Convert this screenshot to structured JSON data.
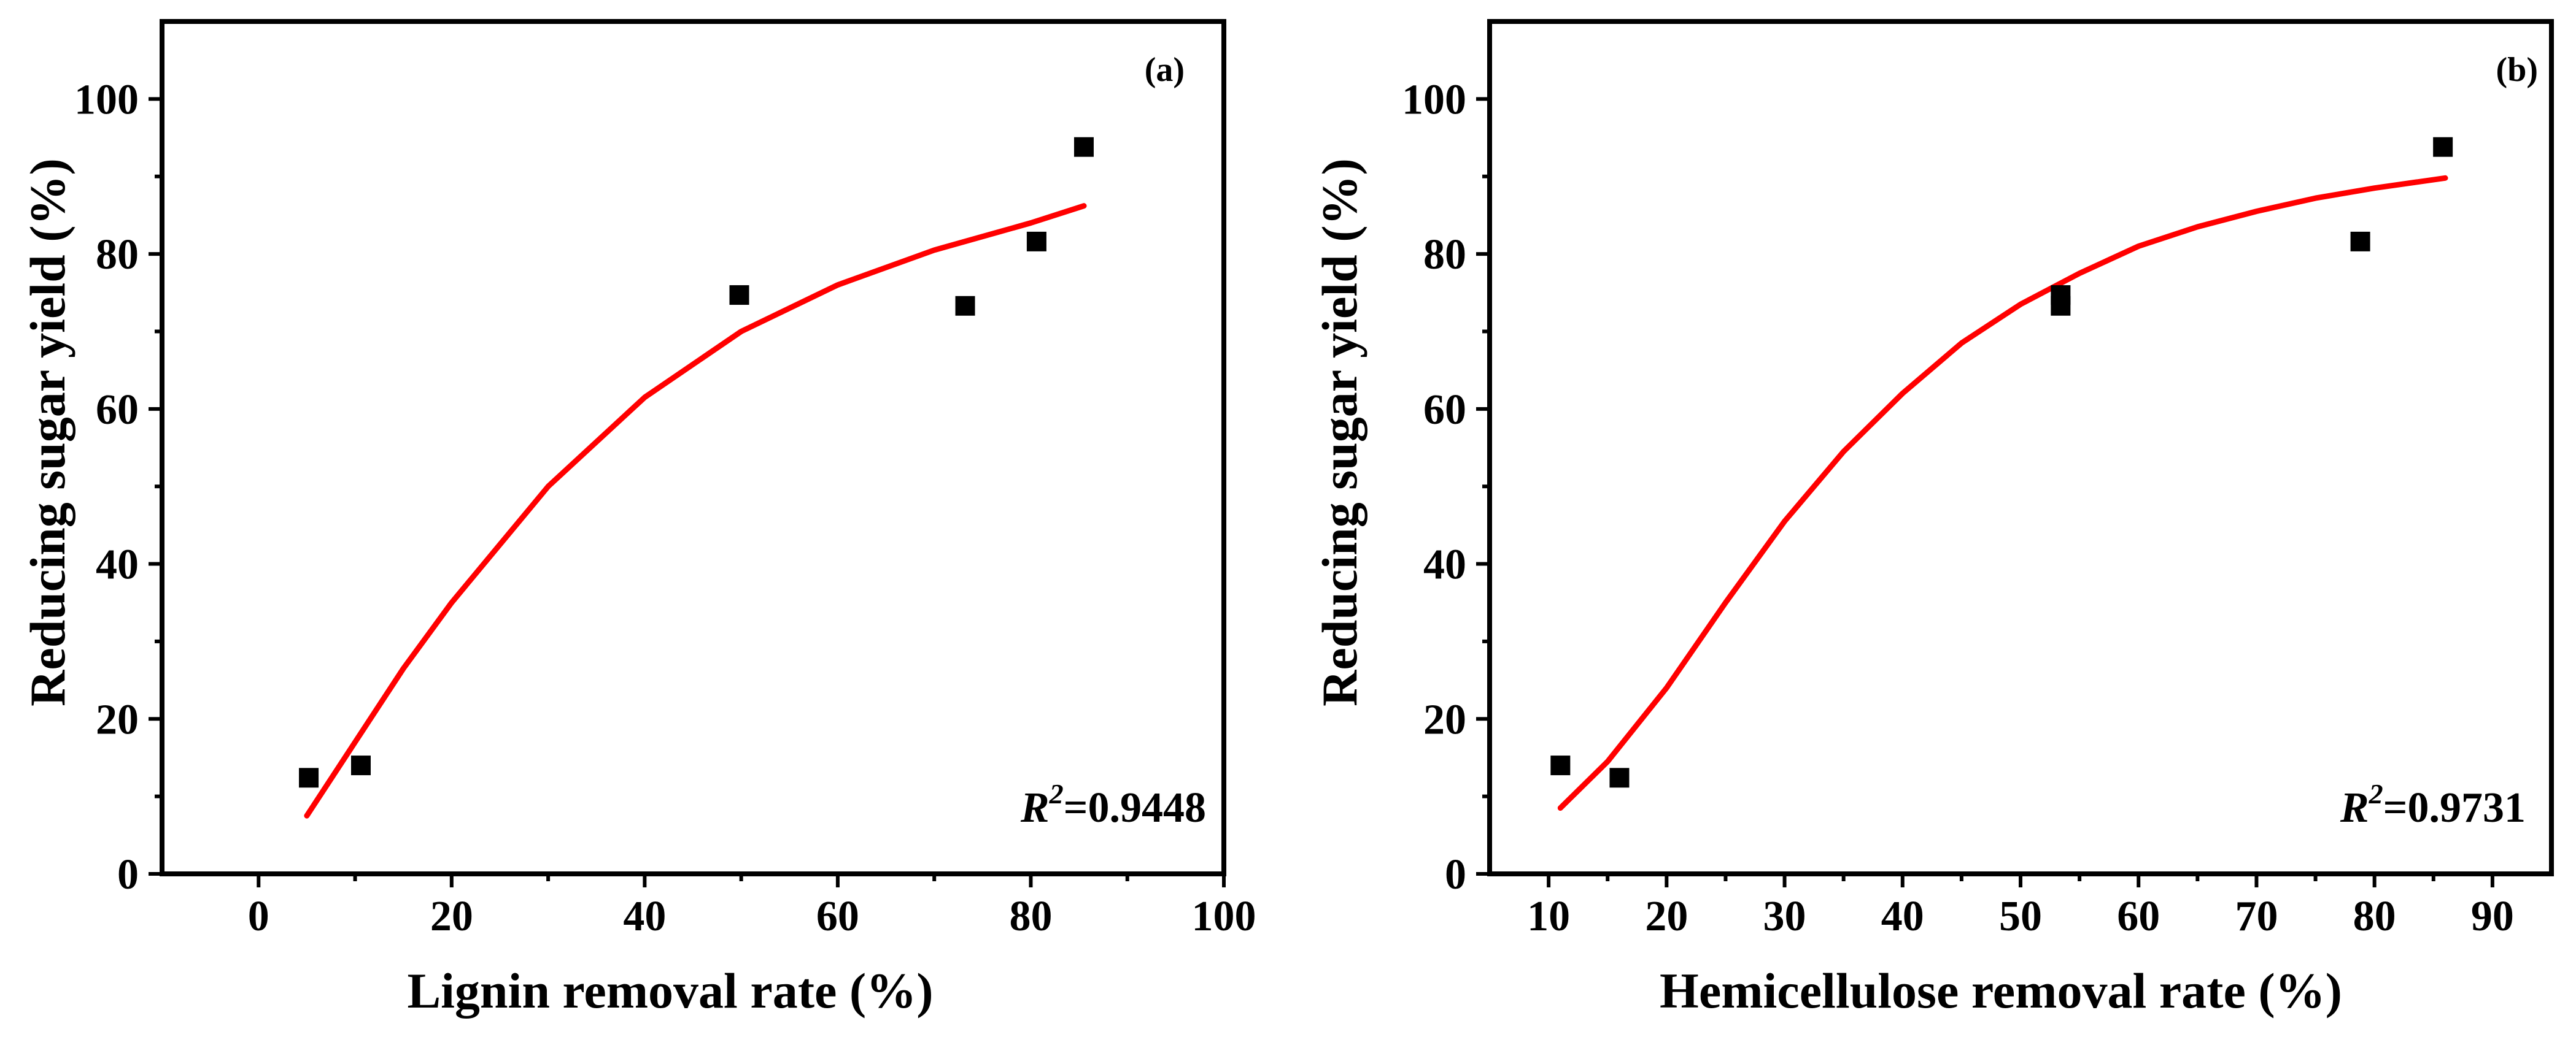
{
  "chart_data": [
    {
      "type": "scatter",
      "panel_label": "(a)",
      "xlabel": "Lignin removal rate (%)",
      "ylabel": "Reducing sugar yield  (%)",
      "xlim": [
        -10,
        100
      ],
      "ylim": [
        0,
        110
      ],
      "x_ticks": [
        0,
        20,
        40,
        60,
        80,
        100
      ],
      "y_ticks": [
        0,
        20,
        40,
        60,
        80,
        100
      ],
      "x_tick_labels": [
        "0",
        "20",
        "40",
        "60",
        "80",
        "100"
      ],
      "y_tick_labels": [
        "0",
        "20",
        "40",
        "60",
        "80",
        "100"
      ],
      "points": [
        {
          "x": 5.2,
          "y": 12.4
        },
        {
          "x": 10.6,
          "y": 14.0
        },
        {
          "x": 49.8,
          "y": 74.7
        },
        {
          "x": 73.2,
          "y": 73.3
        },
        {
          "x": 80.6,
          "y": 81.6
        },
        {
          "x": 85.5,
          "y": 93.8
        }
      ],
      "fit_curve": {
        "color": "#ff0000",
        "points": [
          [
            5,
            7.5
          ],
          [
            10,
            17
          ],
          [
            15,
            26.5
          ],
          [
            20,
            35
          ],
          [
            30,
            50
          ],
          [
            40,
            61.5
          ],
          [
            50,
            70
          ],
          [
            60,
            76
          ],
          [
            70,
            80.5
          ],
          [
            80,
            84
          ],
          [
            85.5,
            86.2
          ]
        ]
      },
      "r2_label": "R",
      "r2_superscript": "2",
      "r2_value": "=0.9448"
    },
    {
      "type": "scatter",
      "panel_label": "(b)",
      "xlabel": "Hemicellulose removal rate (%)",
      "ylabel": "Reducing sugar yield (%)",
      "xlim": [
        5,
        95
      ],
      "ylim": [
        0,
        110
      ],
      "x_ticks": [
        10,
        20,
        30,
        40,
        50,
        60,
        70,
        80,
        90
      ],
      "y_ticks": [
        0,
        20,
        40,
        60,
        80,
        100
      ],
      "x_tick_labels": [
        "10",
        "20",
        "30",
        "40",
        "50",
        "60",
        "70",
        "80",
        "90"
      ],
      "y_tick_labels": [
        "0",
        "20",
        "40",
        "60",
        "80",
        "100"
      ],
      "points": [
        {
          "x": 11.0,
          "y": 14.0
        },
        {
          "x": 16.0,
          "y": 12.4
        },
        {
          "x": 53.4,
          "y": 74.7
        },
        {
          "x": 53.4,
          "y": 73.3
        },
        {
          "x": 78.8,
          "y": 81.6
        },
        {
          "x": 85.8,
          "y": 93.8
        }
      ],
      "fit_curve": {
        "color": "#ff0000",
        "points": [
          [
            11,
            8.5
          ],
          [
            15,
            14.5
          ],
          [
            20,
            24
          ],
          [
            25,
            35
          ],
          [
            30,
            45.5
          ],
          [
            35,
            54.5
          ],
          [
            40,
            62
          ],
          [
            45,
            68.5
          ],
          [
            50,
            73.5
          ],
          [
            55,
            77.5
          ],
          [
            60,
            81
          ],
          [
            65,
            83.5
          ],
          [
            70,
            85.5
          ],
          [
            75,
            87.2
          ],
          [
            80,
            88.5
          ],
          [
            86,
            89.8
          ]
        ]
      },
      "r2_label": "R",
      "r2_superscript": "2",
      "r2_value": "=0.9731"
    }
  ]
}
